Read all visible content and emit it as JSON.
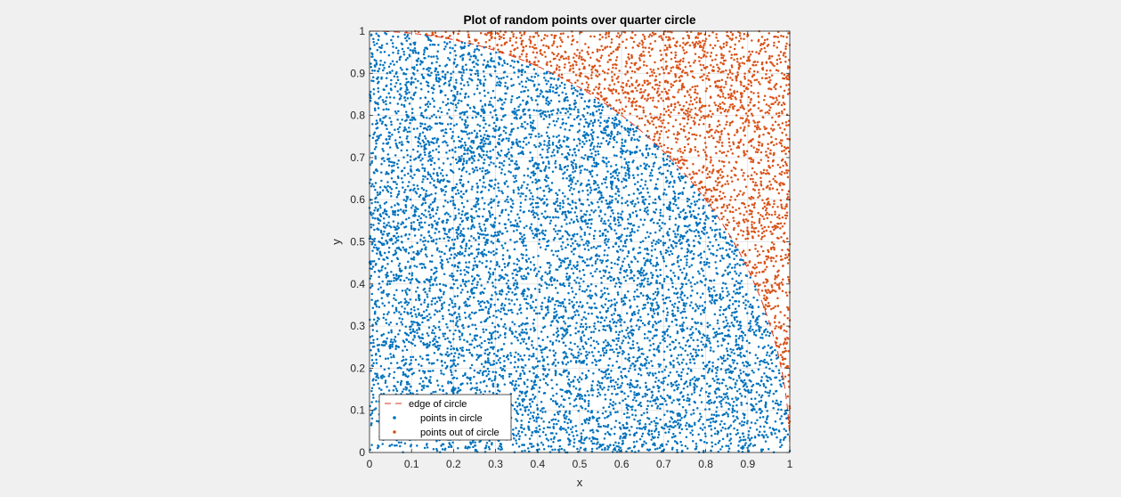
{
  "chart_data": {
    "type": "scatter",
    "title": "Plot of random points over quarter circle",
    "xlabel": "x",
    "ylabel": "y",
    "xlim": [
      0,
      1
    ],
    "ylim": [
      0,
      1
    ],
    "grid": true,
    "xticks": [
      "0",
      "0.1",
      "0.2",
      "0.3",
      "0.4",
      "0.5",
      "0.6",
      "0.7",
      "0.8",
      "0.9",
      "1"
    ],
    "yticks": [
      "0",
      "0.1",
      "0.2",
      "0.3",
      "0.4",
      "0.5",
      "0.6",
      "0.7",
      "0.8",
      "0.9",
      "1"
    ],
    "legend_position": "bottom-left",
    "series": [
      {
        "name": "edge of circle",
        "kind": "line",
        "style": "dashed",
        "color": "#d9351c",
        "equation": "y = sqrt(1 - x^2)"
      },
      {
        "name": "points in circle",
        "kind": "points",
        "color": "#0072bd",
        "condition": "x^2 + y^2 <= 1",
        "x_range": [
          0,
          1
        ],
        "y_range": [
          0,
          1
        ]
      },
      {
        "name": "points out of circle",
        "kind": "points",
        "color": "#d95319",
        "condition": "x^2 + y^2 > 1",
        "x_range": [
          0,
          1
        ],
        "y_range": [
          0,
          1
        ]
      }
    ]
  }
}
